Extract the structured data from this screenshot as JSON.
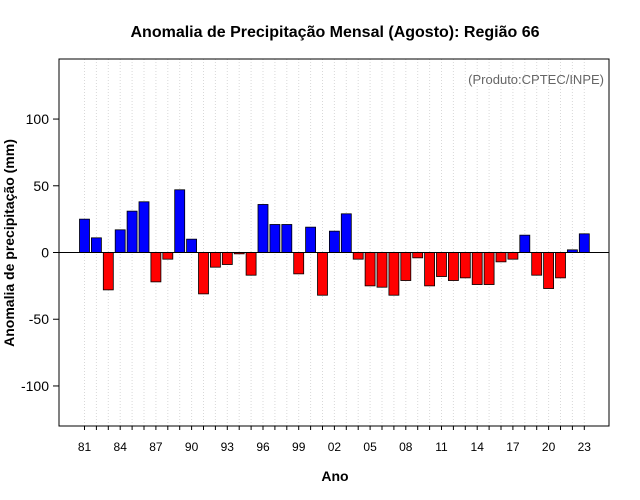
{
  "chart_data": {
    "type": "bar",
    "title": "Anomalia de Precipitação Mensal (Agosto): Região 66",
    "xlabel": "Ano",
    "ylabel": "Anomalia de precipitação (mm)",
    "credit": "(Produto:CPTEC/INPE)",
    "ylim": [
      -130,
      145
    ],
    "yticks": [
      -100,
      -50,
      0,
      50,
      100
    ],
    "grid": "vertical-dotted",
    "positive_color": "#0000ff",
    "negative_color": "#ff0000",
    "categories": [
      "1981",
      "1982",
      "1983",
      "1984",
      "1985",
      "1986",
      "1987",
      "1988",
      "1989",
      "1990",
      "1991",
      "1992",
      "1993",
      "1994",
      "1995",
      "1996",
      "1997",
      "1998",
      "1999",
      "2000",
      "2001",
      "2002",
      "2003",
      "2004",
      "2005",
      "2006",
      "2007",
      "2008",
      "2009",
      "2010",
      "2011",
      "2012",
      "2013",
      "2014",
      "2015",
      "2016",
      "2017",
      "2018",
      "2019",
      "2020",
      "2021",
      "2022",
      "2023"
    ],
    "xtick_labels": [
      {
        "index": 0,
        "label": "81"
      },
      {
        "index": 3,
        "label": "84"
      },
      {
        "index": 6,
        "label": "87"
      },
      {
        "index": 9,
        "label": "90"
      },
      {
        "index": 12,
        "label": "93"
      },
      {
        "index": 15,
        "label": "96"
      },
      {
        "index": 18,
        "label": "99"
      },
      {
        "index": 21,
        "label": "02"
      },
      {
        "index": 24,
        "label": "05"
      },
      {
        "index": 27,
        "label": "08"
      },
      {
        "index": 30,
        "label": "11"
      },
      {
        "index": 33,
        "label": "14"
      },
      {
        "index": 36,
        "label": "17"
      },
      {
        "index": 39,
        "label": "20"
      },
      {
        "index": 42,
        "label": "23"
      }
    ],
    "values": [
      25,
      11,
      -28,
      17,
      31,
      38,
      -22,
      -5,
      47,
      10,
      -31,
      -11,
      -9,
      -1,
      -17,
      36,
      21,
      21,
      -16,
      19,
      -32,
      16,
      29,
      -5,
      -25,
      -26,
      -32,
      -21,
      -4,
      -25,
      -18,
      -21,
      -19,
      -24,
      -24,
      -7,
      -5,
      13,
      -17,
      -27,
      -19,
      2,
      14
    ]
  }
}
